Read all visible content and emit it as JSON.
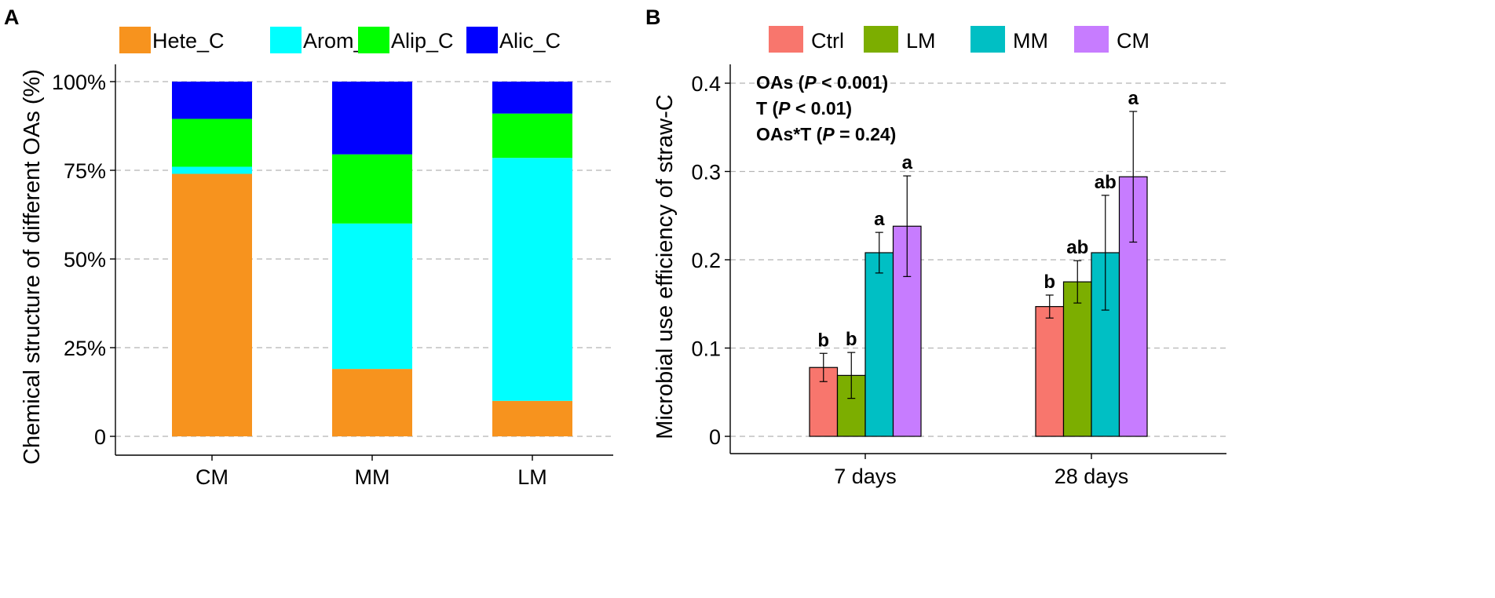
{
  "chart_data": [
    {
      "panel": "A",
      "type": "bar",
      "stacked": true,
      "ylabel": "Chemical structure of different OAs (%)",
      "xlabel": "",
      "ylim": [
        0,
        100
      ],
      "yticks": [
        0,
        25,
        50,
        75,
        100
      ],
      "ytick_labels": [
        "0",
        "25%",
        "50%",
        "75%",
        "100%"
      ],
      "categories": [
        "CM",
        "MM",
        "LM"
      ],
      "legend_position": "top",
      "grid": true,
      "series": [
        {
          "name": "Hete_C",
          "color": "#F7931E",
          "values": [
            74,
            19,
            10
          ]
        },
        {
          "name": "Arom_C",
          "color": "#00FFFF",
          "values": [
            2,
            41,
            68.5
          ]
        },
        {
          "name": "Alip_C",
          "color": "#00FF00",
          "values": [
            13.5,
            19.5,
            12.5
          ]
        },
        {
          "name": "Alic_C",
          "color": "#0000FF",
          "values": [
            10.5,
            20.5,
            9
          ]
        }
      ]
    },
    {
      "panel": "B",
      "type": "bar",
      "stacked": false,
      "ylabel": "Microbial use efficiency of straw-C",
      "xlabel": "",
      "ylim": [
        0,
        0.4
      ],
      "yticks": [
        0,
        0.1,
        0.2,
        0.3,
        0.4
      ],
      "ytick_labels": [
        "0",
        "0.1",
        "0.2",
        "0.3",
        "0.4"
      ],
      "categories": [
        "7 days",
        "28 days"
      ],
      "legend_position": "top",
      "grid": true,
      "series": [
        {
          "name": "Ctrl",
          "color": "#F8766D",
          "values": [
            0.078,
            0.147
          ],
          "errors": [
            0.016,
            0.013
          ],
          "letters": [
            "b",
            "b"
          ]
        },
        {
          "name": "LM",
          "color": "#7CAE00",
          "values": [
            0.069,
            0.175
          ],
          "errors": [
            0.026,
            0.024
          ],
          "letters": [
            "b",
            "ab"
          ]
        },
        {
          "name": "MM",
          "color": "#00BFC4",
          "values": [
            0.208,
            0.208
          ],
          "errors": [
            0.023,
            0.065
          ],
          "letters": [
            "a",
            "ab"
          ]
        },
        {
          "name": "CM",
          "color": "#C77CFF",
          "values": [
            0.238,
            0.294
          ],
          "errors": [
            0.057,
            0.074
          ],
          "letters": [
            "a",
            "a"
          ]
        }
      ],
      "annotations": [
        {
          "pre": "OAs (",
          "italic": "P",
          "post": " < 0.001)"
        },
        {
          "pre": "T (",
          "italic": "P",
          "post": " < 0.01)"
        },
        {
          "pre": "OAs*T (",
          "italic": "P",
          "post": " = 0.24)"
        }
      ]
    }
  ]
}
